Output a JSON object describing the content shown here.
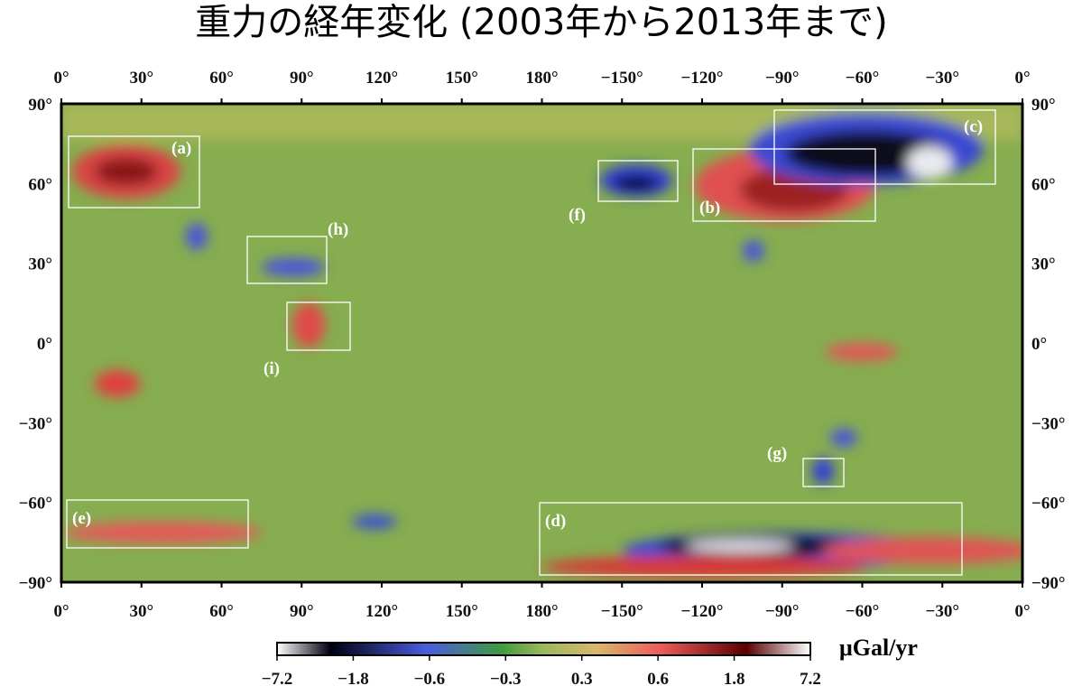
{
  "title": "重力の経年変化 (2003年から2013年まで)",
  "top_axis": [
    "0°",
    "30°",
    "60°",
    "90°",
    "120°",
    "150°",
    "180°",
    "−150°",
    "−120°",
    "−90°",
    "−60°",
    "−30°",
    "0°"
  ],
  "bottom_axis": [
    "0°",
    "30°",
    "60°",
    "90°",
    "120°",
    "150°",
    "180°",
    "−150°",
    "−120°",
    "−90°",
    "−60°",
    "−30°",
    "0°"
  ],
  "left_axis": [
    "90°",
    "60°",
    "30°",
    "0°",
    "−30°",
    "−60°",
    "−90°"
  ],
  "right_axis": [
    "90°",
    "60°",
    "30°",
    "0°",
    "−30°",
    "−60°",
    "−90°"
  ],
  "regions": [
    "(a)",
    "(b)",
    "(c)",
    "(d)",
    "(e)",
    "(f)",
    "(g)",
    "(h)",
    "(i)"
  ],
  "colorbar": {
    "labels": [
      "−7.2",
      "−1.8",
      "−0.6",
      "−0.3",
      "0.3",
      "0.6",
      "1.8",
      "7.2"
    ],
    "unit": "μGal/yr"
  }
}
